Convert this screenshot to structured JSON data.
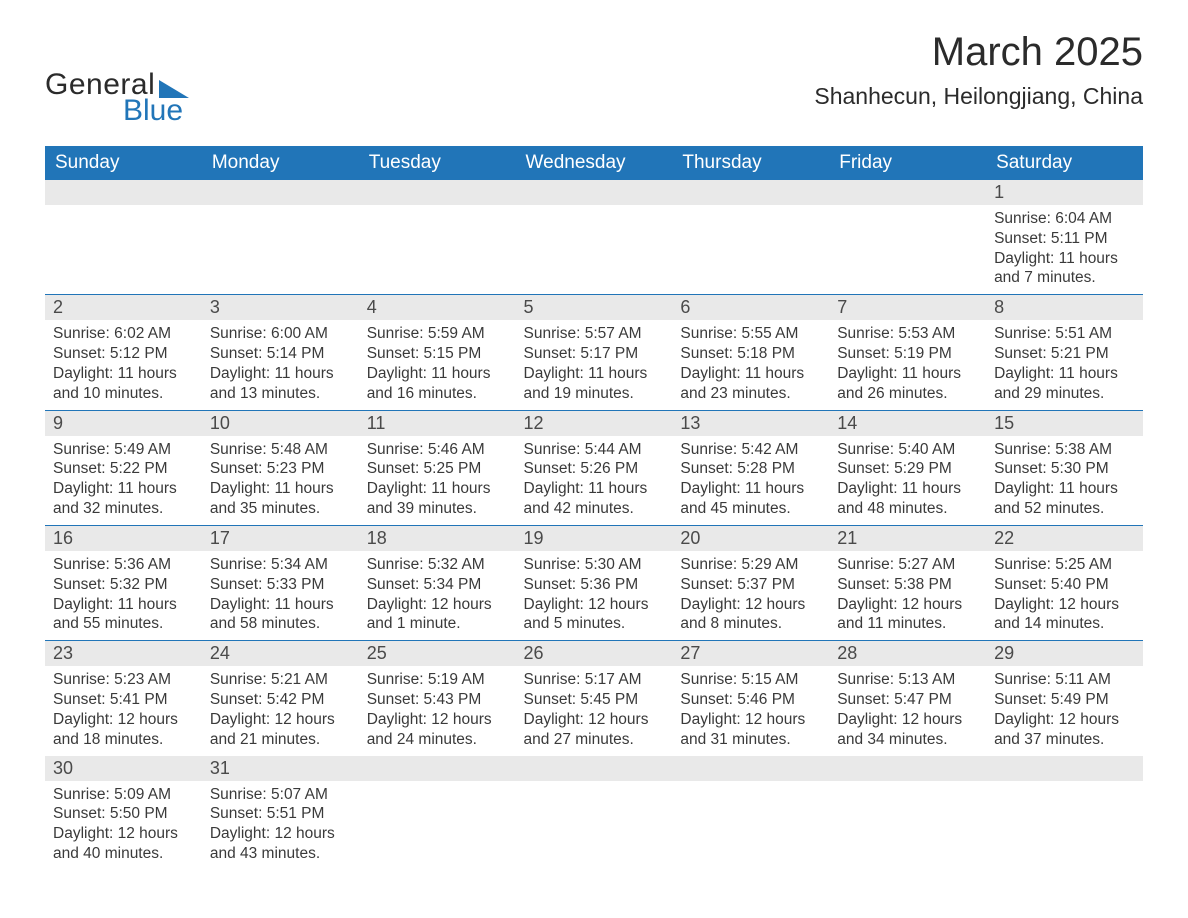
{
  "logo": {
    "text1": "General",
    "text2": "Blue",
    "accent_color": "#2175b8"
  },
  "title": {
    "month": "March 2025",
    "location": "Shanhecun, Heilongjiang, China"
  },
  "calendar": {
    "header_bg": "#2175b8",
    "header_fg": "#ffffff",
    "daynum_bg": "#e9e9e9",
    "border_color": "#2175b8",
    "text_color": "#3a3a3a",
    "font_size_header": 19,
    "font_size_daynum": 18,
    "font_size_body": 15.5,
    "columns": [
      "Sunday",
      "Monday",
      "Tuesday",
      "Wednesday",
      "Thursday",
      "Friday",
      "Saturday"
    ],
    "weeks": [
      [
        null,
        null,
        null,
        null,
        null,
        null,
        {
          "n": "1",
          "sr": "6:04 AM",
          "ss": "5:11 PM",
          "dl": "11 hours and 7 minutes."
        }
      ],
      [
        {
          "n": "2",
          "sr": "6:02 AM",
          "ss": "5:12 PM",
          "dl": "11 hours and 10 minutes."
        },
        {
          "n": "3",
          "sr": "6:00 AM",
          "ss": "5:14 PM",
          "dl": "11 hours and 13 minutes."
        },
        {
          "n": "4",
          "sr": "5:59 AM",
          "ss": "5:15 PM",
          "dl": "11 hours and 16 minutes."
        },
        {
          "n": "5",
          "sr": "5:57 AM",
          "ss": "5:17 PM",
          "dl": "11 hours and 19 minutes."
        },
        {
          "n": "6",
          "sr": "5:55 AM",
          "ss": "5:18 PM",
          "dl": "11 hours and 23 minutes."
        },
        {
          "n": "7",
          "sr": "5:53 AM",
          "ss": "5:19 PM",
          "dl": "11 hours and 26 minutes."
        },
        {
          "n": "8",
          "sr": "5:51 AM",
          "ss": "5:21 PM",
          "dl": "11 hours and 29 minutes."
        }
      ],
      [
        {
          "n": "9",
          "sr": "5:49 AM",
          "ss": "5:22 PM",
          "dl": "11 hours and 32 minutes."
        },
        {
          "n": "10",
          "sr": "5:48 AM",
          "ss": "5:23 PM",
          "dl": "11 hours and 35 minutes."
        },
        {
          "n": "11",
          "sr": "5:46 AM",
          "ss": "5:25 PM",
          "dl": "11 hours and 39 minutes."
        },
        {
          "n": "12",
          "sr": "5:44 AM",
          "ss": "5:26 PM",
          "dl": "11 hours and 42 minutes."
        },
        {
          "n": "13",
          "sr": "5:42 AM",
          "ss": "5:28 PM",
          "dl": "11 hours and 45 minutes."
        },
        {
          "n": "14",
          "sr": "5:40 AM",
          "ss": "5:29 PM",
          "dl": "11 hours and 48 minutes."
        },
        {
          "n": "15",
          "sr": "5:38 AM",
          "ss": "5:30 PM",
          "dl": "11 hours and 52 minutes."
        }
      ],
      [
        {
          "n": "16",
          "sr": "5:36 AM",
          "ss": "5:32 PM",
          "dl": "11 hours and 55 minutes."
        },
        {
          "n": "17",
          "sr": "5:34 AM",
          "ss": "5:33 PM",
          "dl": "11 hours and 58 minutes."
        },
        {
          "n": "18",
          "sr": "5:32 AM",
          "ss": "5:34 PM",
          "dl": "12 hours and 1 minute."
        },
        {
          "n": "19",
          "sr": "5:30 AM",
          "ss": "5:36 PM",
          "dl": "12 hours and 5 minutes."
        },
        {
          "n": "20",
          "sr": "5:29 AM",
          "ss": "5:37 PM",
          "dl": "12 hours and 8 minutes."
        },
        {
          "n": "21",
          "sr": "5:27 AM",
          "ss": "5:38 PM",
          "dl": "12 hours and 11 minutes."
        },
        {
          "n": "22",
          "sr": "5:25 AM",
          "ss": "5:40 PM",
          "dl": "12 hours and 14 minutes."
        }
      ],
      [
        {
          "n": "23",
          "sr": "5:23 AM",
          "ss": "5:41 PM",
          "dl": "12 hours and 18 minutes."
        },
        {
          "n": "24",
          "sr": "5:21 AM",
          "ss": "5:42 PM",
          "dl": "12 hours and 21 minutes."
        },
        {
          "n": "25",
          "sr": "5:19 AM",
          "ss": "5:43 PM",
          "dl": "12 hours and 24 minutes."
        },
        {
          "n": "26",
          "sr": "5:17 AM",
          "ss": "5:45 PM",
          "dl": "12 hours and 27 minutes."
        },
        {
          "n": "27",
          "sr": "5:15 AM",
          "ss": "5:46 PM",
          "dl": "12 hours and 31 minutes."
        },
        {
          "n": "28",
          "sr": "5:13 AM",
          "ss": "5:47 PM",
          "dl": "12 hours and 34 minutes."
        },
        {
          "n": "29",
          "sr": "5:11 AM",
          "ss": "5:49 PM",
          "dl": "12 hours and 37 minutes."
        }
      ],
      [
        {
          "n": "30",
          "sr": "5:09 AM",
          "ss": "5:50 PM",
          "dl": "12 hours and 40 minutes."
        },
        {
          "n": "31",
          "sr": "5:07 AM",
          "ss": "5:51 PM",
          "dl": "12 hours and 43 minutes."
        },
        null,
        null,
        null,
        null,
        null
      ]
    ],
    "labels": {
      "sunrise": "Sunrise:",
      "sunset": "Sunset:",
      "daylight": "Daylight:"
    }
  }
}
